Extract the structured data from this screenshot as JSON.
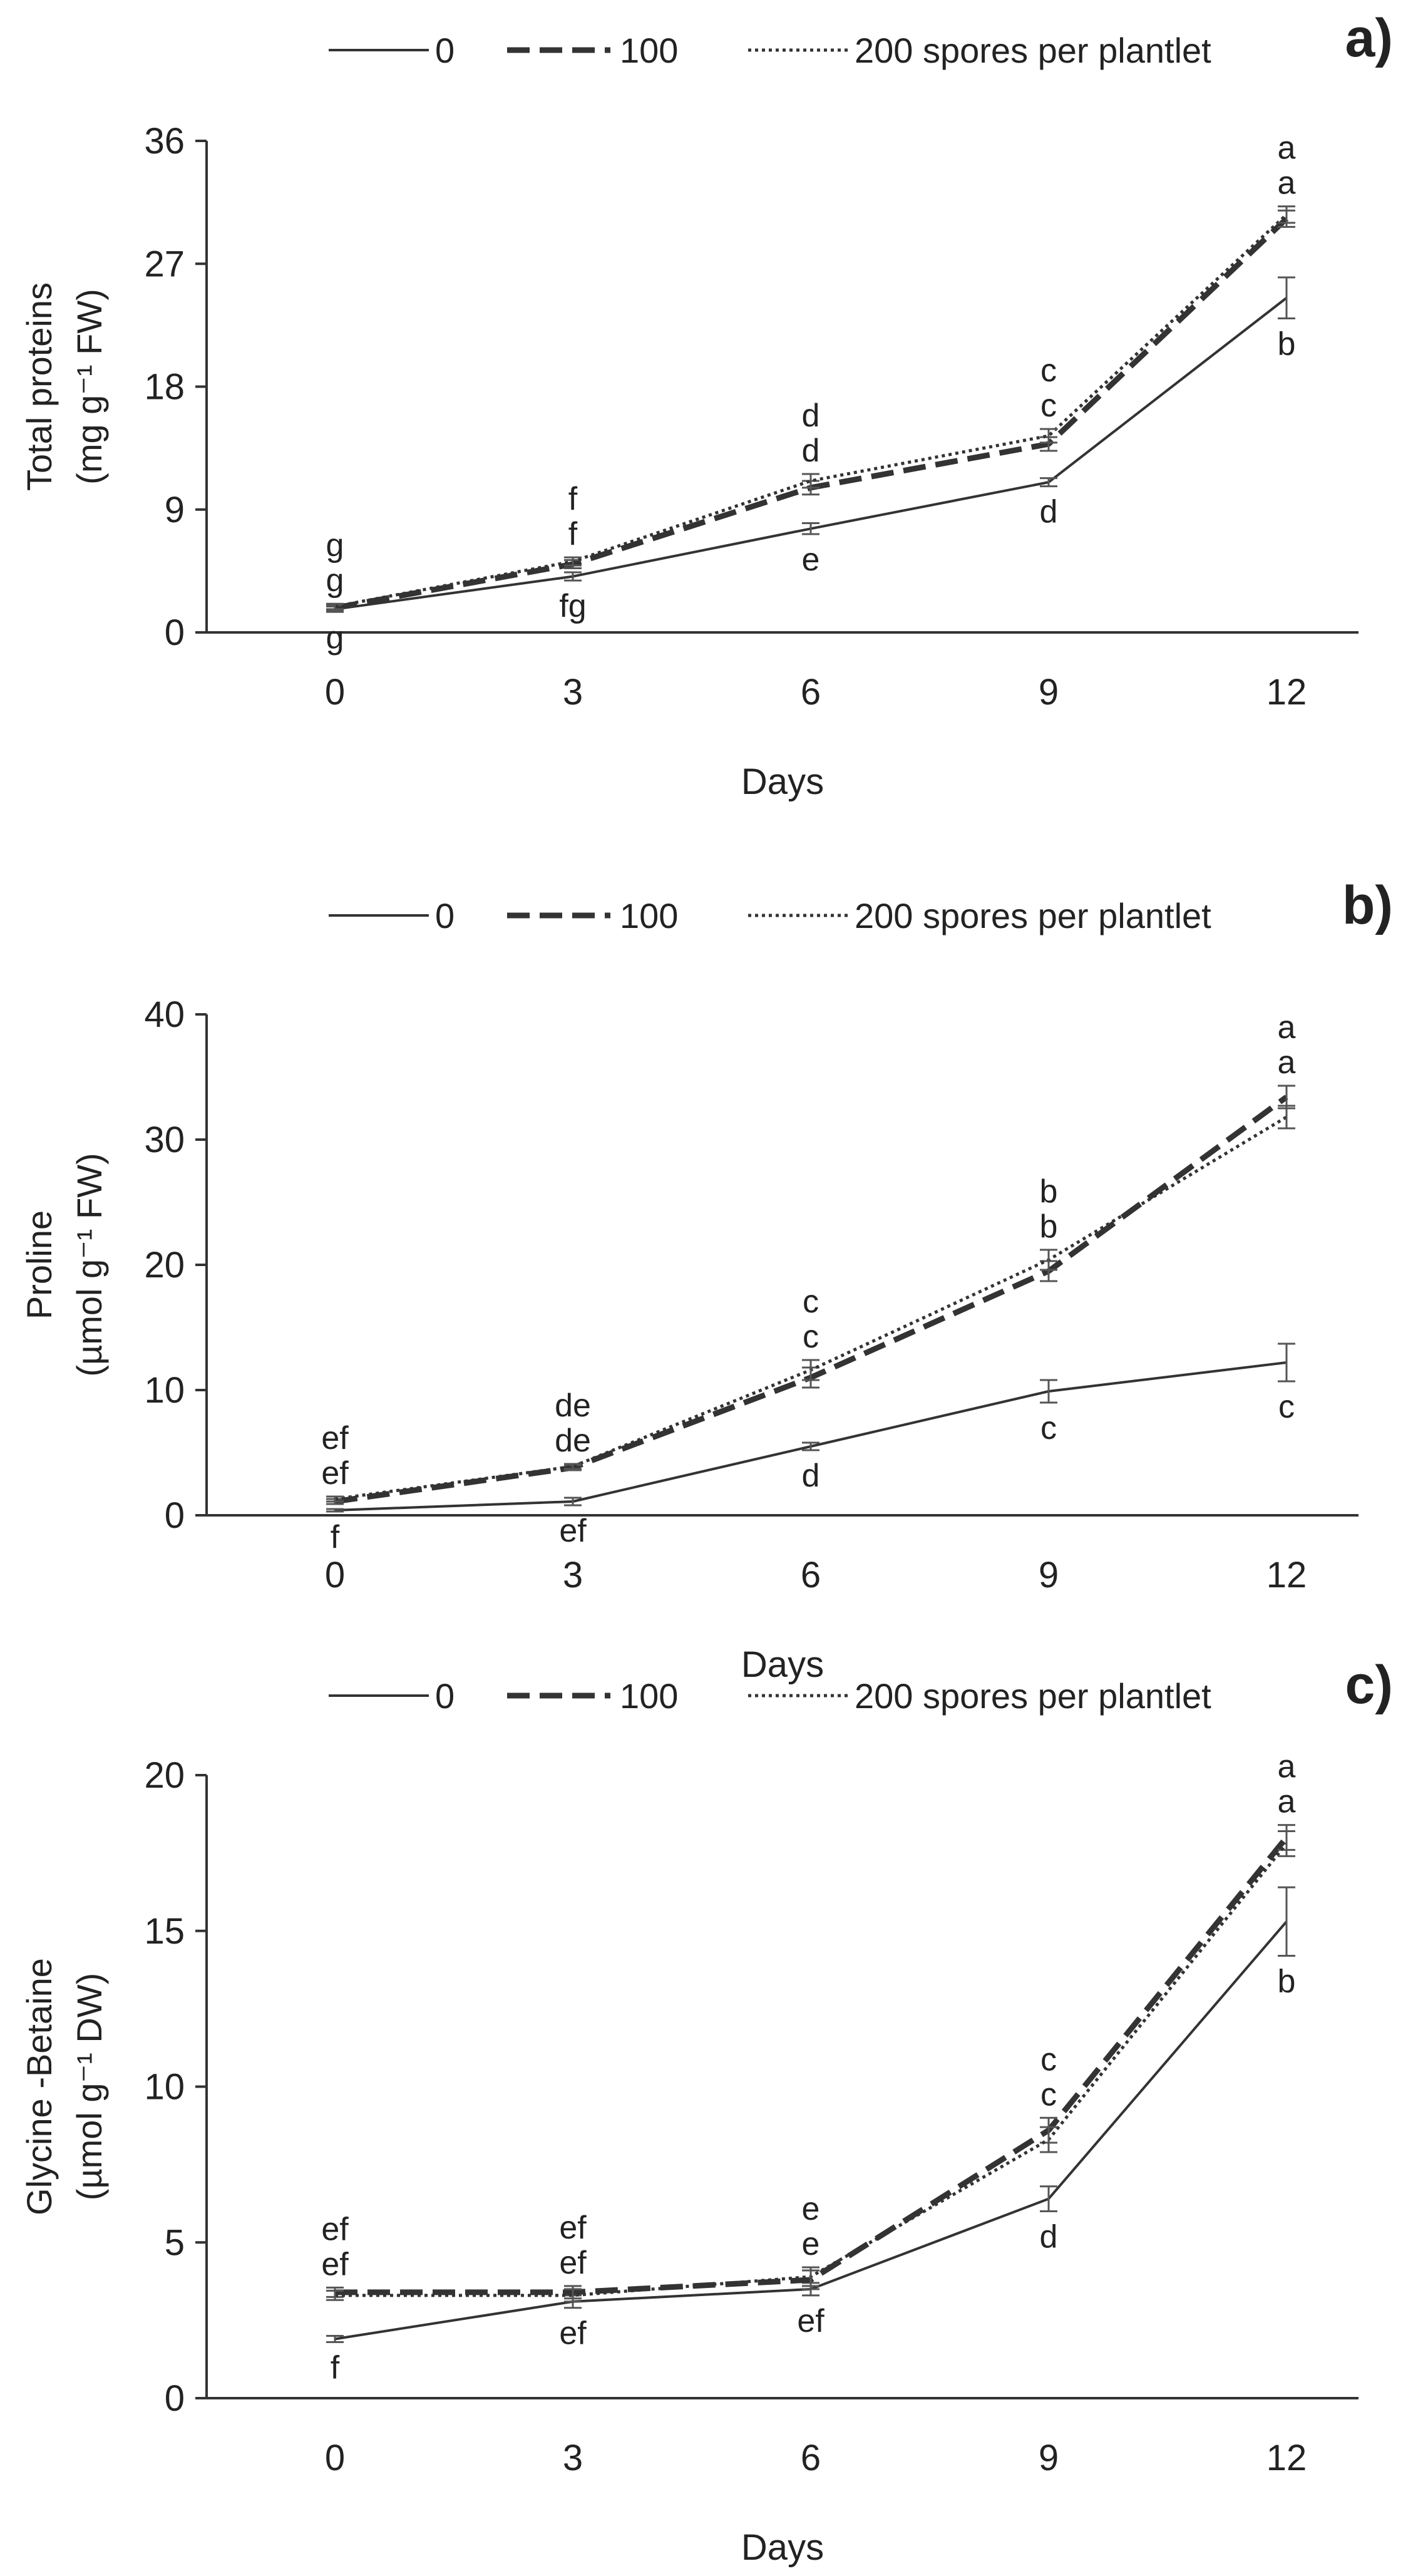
{
  "colors": {
    "axis": "#333333",
    "line": "#333333",
    "text": "#222222",
    "errorbar": "#555555"
  },
  "legend_labels": [
    "0",
    "100",
    "200 spores per plantlet"
  ],
  "chart_data": [
    {
      "type": "line",
      "panel_label": "a)",
      "ylabel_line1": "Total  proteins",
      "ylabel_line2": "(mg g⁻¹ FW)",
      "xlabel": "Days",
      "x": [
        0,
        3,
        6,
        9,
        12
      ],
      "ylim": [
        0,
        36
      ],
      "yticks": [
        0,
        9,
        18,
        27,
        36
      ],
      "series": [
        {
          "name": "0",
          "style": "solid",
          "values": [
            1.7,
            4.1,
            7.6,
            11.0,
            24.5
          ],
          "errors": [
            0.2,
            0.3,
            0.4,
            0.3,
            1.5
          ],
          "letters": [
            "g",
            "fg",
            "e",
            "d",
            "b"
          ],
          "letter_pos": "below"
        },
        {
          "name": "100",
          "style": "dashed",
          "values": [
            1.8,
            5.0,
            10.6,
            13.8,
            30.3
          ],
          "errors": [
            0.2,
            0.3,
            0.5,
            0.5,
            0.6
          ],
          "letters": [
            "g",
            "f",
            "d",
            "c",
            "a"
          ],
          "letter_pos": "above"
        },
        {
          "name": "200 spores per plantlet",
          "style": "dotted",
          "values": [
            1.9,
            5.2,
            11.1,
            14.4,
            30.6
          ],
          "errors": [
            0.2,
            0.3,
            0.5,
            0.5,
            0.6
          ],
          "letters": [
            "g",
            "f",
            "d",
            "c",
            "a"
          ],
          "letter_pos": "above"
        }
      ]
    },
    {
      "type": "line",
      "panel_label": "b)",
      "ylabel_line1": "Proline",
      "ylabel_line2": "(µmol g⁻¹ FW)",
      "xlabel": "Days",
      "x": [
        0,
        3,
        6,
        9,
        12
      ],
      "ylim": [
        0,
        40
      ],
      "yticks": [
        0,
        10,
        20,
        30,
        40
      ],
      "series": [
        {
          "name": "0",
          "style": "solid",
          "values": [
            0.4,
            1.1,
            5.5,
            9.9,
            12.2
          ],
          "errors": [
            0.1,
            0.3,
            0.3,
            0.9,
            1.5
          ],
          "letters": [
            "f",
            "ef",
            "d",
            "c",
            "c"
          ],
          "letter_pos": "below"
        },
        {
          "name": "100",
          "style": "dashed",
          "values": [
            1.1,
            3.8,
            11.0,
            19.5,
            33.4
          ],
          "errors": [
            0.2,
            0.2,
            0.8,
            0.8,
            0.9
          ],
          "letters": [
            "ef",
            "de",
            "c",
            "b",
            "a"
          ],
          "letter_pos": "above"
        },
        {
          "name": "200 spores per plantlet",
          "style": "dotted",
          "values": [
            1.3,
            3.9,
            11.6,
            20.4,
            31.8
          ],
          "errors": [
            0.2,
            0.2,
            0.8,
            0.8,
            0.9
          ],
          "letters": [
            "ef",
            "de",
            "c",
            "b",
            "a"
          ],
          "letter_pos": "above"
        }
      ]
    },
    {
      "type": "line",
      "panel_label": "c)",
      "ylabel_line1": "Glycine -Betaine",
      "ylabel_line2": "(µmol g⁻¹ DW)",
      "xlabel": "Days",
      "x": [
        0,
        3,
        6,
        9,
        12
      ],
      "ylim": [
        0,
        20
      ],
      "yticks": [
        0,
        5,
        10,
        15,
        20
      ],
      "series": [
        {
          "name": "0",
          "style": "solid",
          "values": [
            1.9,
            3.1,
            3.5,
            6.4,
            15.3
          ],
          "errors": [
            0.1,
            0.2,
            0.2,
            0.4,
            1.1
          ],
          "letters": [
            "f",
            "ef",
            "ef",
            "d",
            "b"
          ],
          "letter_pos": "below"
        },
        {
          "name": "100",
          "style": "dashed",
          "values": [
            3.4,
            3.4,
            3.8,
            8.6,
            18.0
          ],
          "errors": [
            0.15,
            0.2,
            0.3,
            0.4,
            0.4
          ],
          "letters": [
            "ef",
            "ef",
            "e",
            "c",
            "a"
          ],
          "letter_pos": "above"
        },
        {
          "name": "200 spores per plantlet",
          "style": "dotted",
          "values": [
            3.3,
            3.3,
            3.9,
            8.3,
            17.8
          ],
          "errors": [
            0.15,
            0.2,
            0.3,
            0.4,
            0.4
          ],
          "letters": [
            "ef",
            "ef",
            "e",
            "c",
            "a"
          ],
          "letter_pos": "above"
        }
      ]
    }
  ]
}
